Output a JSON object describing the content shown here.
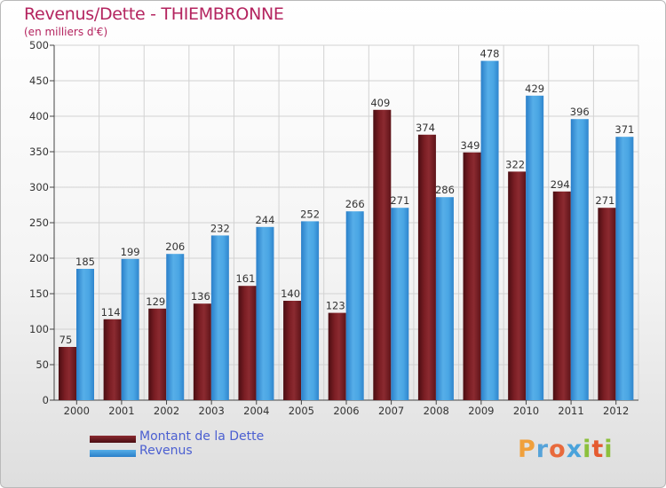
{
  "chart_data": {
    "type": "bar",
    "title": "Revenus/Dette - THIEMBRONNE",
    "subtitle": "(en milliers d'€)",
    "xlabel": "",
    "ylabel": "",
    "ylim": [
      0,
      500
    ],
    "yticks": [
      0,
      50,
      100,
      150,
      200,
      250,
      300,
      350,
      400,
      450,
      500
    ],
    "grid": true,
    "categories": [
      "2000",
      "2001",
      "2002",
      "2003",
      "2004",
      "2005",
      "2006",
      "2007",
      "2008",
      "2009",
      "2010",
      "2011",
      "2012"
    ],
    "series": [
      {
        "name": "Montant de la Dette",
        "color": "#7b1e24",
        "values": [
          75,
          114,
          129,
          136,
          161,
          140,
          123,
          409,
          374,
          349,
          322,
          294,
          271
        ]
      },
      {
        "name": "Revenus",
        "color": "#3f97dc",
        "values": [
          185,
          199,
          206,
          232,
          244,
          252,
          266,
          271,
          286,
          478,
          429,
          396,
          371
        ]
      }
    ],
    "legend_position": "bottom-left"
  },
  "logo": {
    "text": "Proxiti",
    "letters": [
      "P",
      "r",
      "o",
      "x",
      "i",
      "t",
      "i"
    ]
  }
}
